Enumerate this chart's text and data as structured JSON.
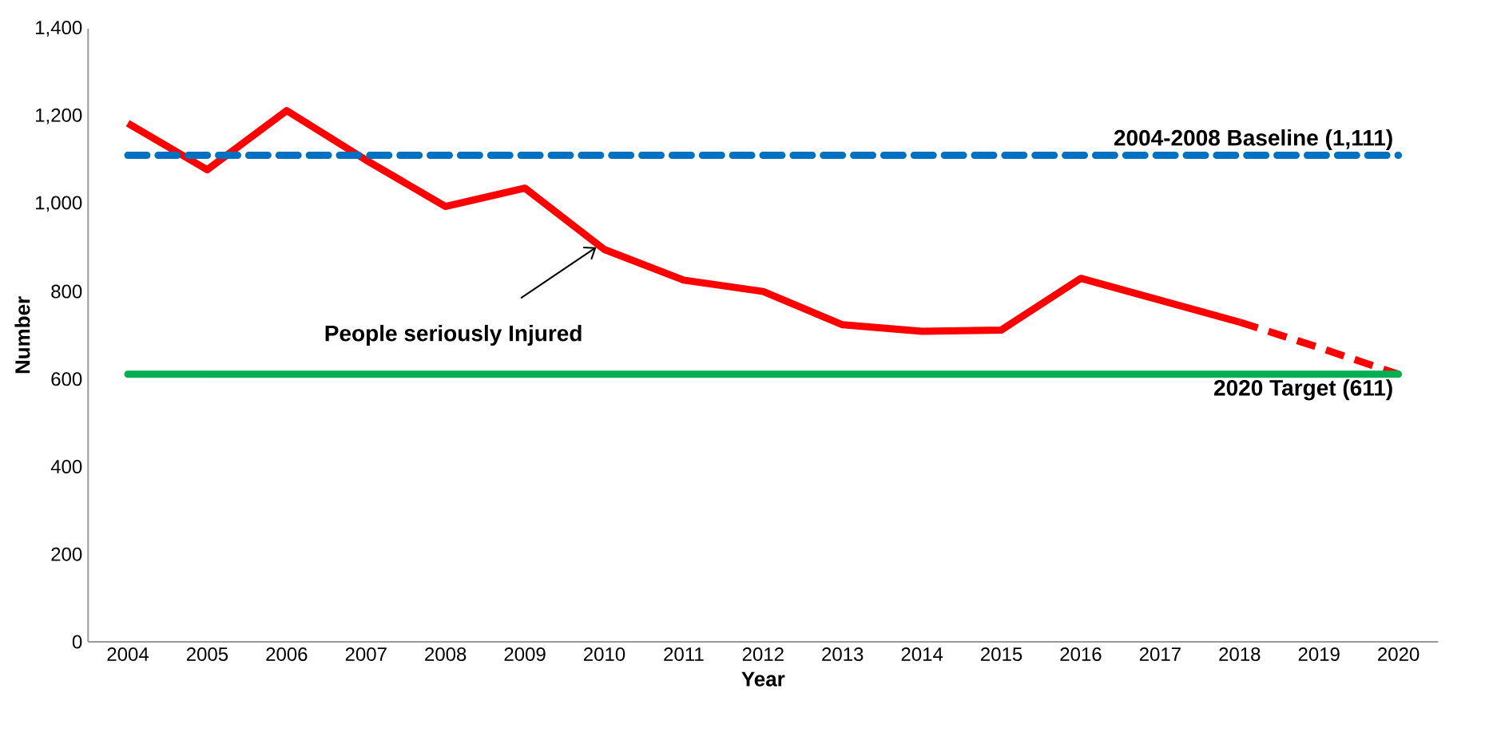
{
  "chart_data": {
    "type": "line",
    "xlabel": "Year",
    "ylabel": "Number",
    "categories": [
      "2004",
      "2005",
      "2006",
      "2007",
      "2008",
      "2009",
      "2010",
      "2011",
      "2012",
      "2013",
      "2014",
      "2015",
      "2016",
      "2017",
      "2018",
      "2019",
      "2020"
    ],
    "series": [
      {
        "color": "#ff0000",
        "line_style": "solid",
        "values": [
          1184,
          1078,
          1213,
          1100,
          994,
          1036,
          896,
          826,
          800,
          724,
          709,
          712,
          830,
          780,
          730,
          null,
          null
        ]
      },
      {
        "color": "#ff0000",
        "line_style": "dashed",
        "values": [
          null,
          null,
          null,
          null,
          null,
          null,
          null,
          null,
          null,
          null,
          null,
          null,
          null,
          null,
          730,
          672,
          611
        ]
      }
    ],
    "ylim": [
      0,
      1400
    ],
    "yticks": [
      0,
      200,
      400,
      600,
      800,
      {
        "value": 1000,
        "label": "1,000"
      },
      {
        "value": 1200,
        "label": "1,200"
      },
      {
        "value": 1400,
        "label": "1,400"
      }
    ],
    "ref_lines": [
      {
        "axis": "y",
        "value": 1111,
        "label": "2004-2008 Baseline (1,111)",
        "color": "#0070c0",
        "line_style": "dashed"
      },
      {
        "axis": "y",
        "value": 611,
        "label": "2020 Target (611)",
        "color": "#00b050",
        "line_style": "solid"
      }
    ],
    "annotations": [
      {
        "text": "People seriously Injured",
        "x": "2010",
        "y": 896
      }
    ],
    "grid": false,
    "marker": "none"
  }
}
